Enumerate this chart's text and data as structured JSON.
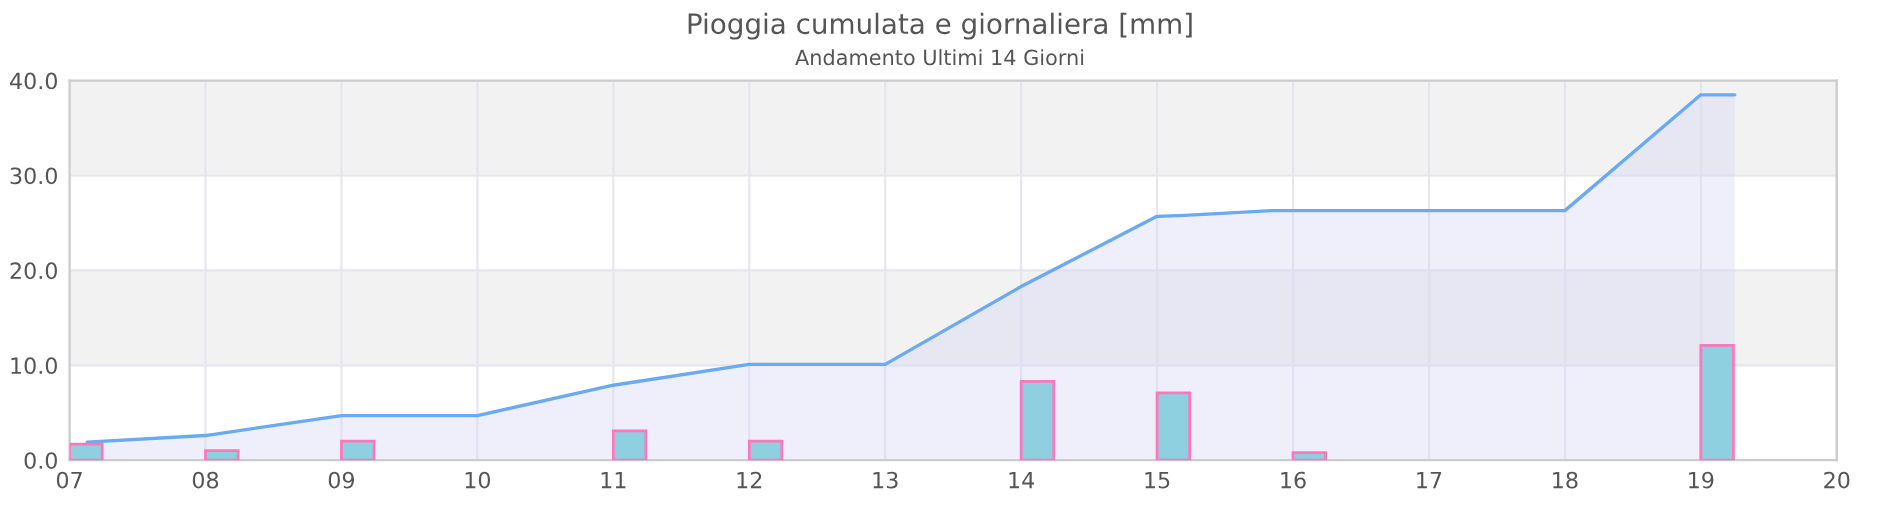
{
  "chart_data": {
    "type": "area",
    "title": "Pioggia cumulata e giornaliera [mm]",
    "subtitle": "Andamento Ultimi 14 Giorni",
    "series": [
      {
        "color": "#6aaaf0",
        "x": [
          7.13,
          8,
          9,
          10,
          11,
          12,
          13,
          14,
          15,
          15.2,
          15.85,
          18,
          19,
          19.25
        ],
        "values": [
          1.9,
          2.6,
          4.7,
          4.7,
          7.9,
          10.1,
          10.1,
          18.3,
          25.7,
          25.8,
          26.3,
          26.3,
          38.5,
          38.5
        ]
      },
      {
        "type": "bar",
        "color": "#8ecfe0",
        "x": [
          7.12,
          8.12,
          9.12,
          11.12,
          12.12,
          14.12,
          15.12,
          16.12,
          19.12
        ],
        "values": [
          1.7,
          1.0,
          2.0,
          3.1,
          2.0,
          8.3,
          7.1,
          0.8,
          12.1
        ]
      }
    ],
    "xlim": [
      7,
      20
    ],
    "xticks": [
      {
        "value": 7,
        "label": "07"
      },
      {
        "value": 8,
        "label": "08"
      },
      {
        "value": 9,
        "label": "09"
      },
      {
        "value": 10,
        "label": "10"
      },
      {
        "value": 11,
        "label": "11"
      },
      {
        "value": 12,
        "label": "12"
      },
      {
        "value": 13,
        "label": "13"
      },
      {
        "value": 14,
        "label": "14"
      },
      {
        "value": 15,
        "label": "15"
      },
      {
        "value": 16,
        "label": "16"
      },
      {
        "value": 17,
        "label": "17"
      },
      {
        "value": 18,
        "label": "18"
      },
      {
        "value": 19,
        "label": "19"
      },
      {
        "value": 20,
        "label": "20"
      }
    ],
    "ylim": [
      0,
      40
    ],
    "yticks": [
      {
        "value": 0,
        "label": "0.0"
      },
      {
        "value": 10,
        "label": "10.0"
      },
      {
        "value": 20,
        "label": "20.0"
      },
      {
        "value": 30,
        "label": "30.0"
      },
      {
        "value": 40,
        "label": "40.0"
      }
    ],
    "bands": [
      {
        "axis": "y",
        "from": 10,
        "to": 20,
        "color": "#f2f2f2"
      },
      {
        "axis": "y",
        "from": 30,
        "to": 40,
        "color": "#f2f2f2"
      }
    ],
    "grid": true
  }
}
